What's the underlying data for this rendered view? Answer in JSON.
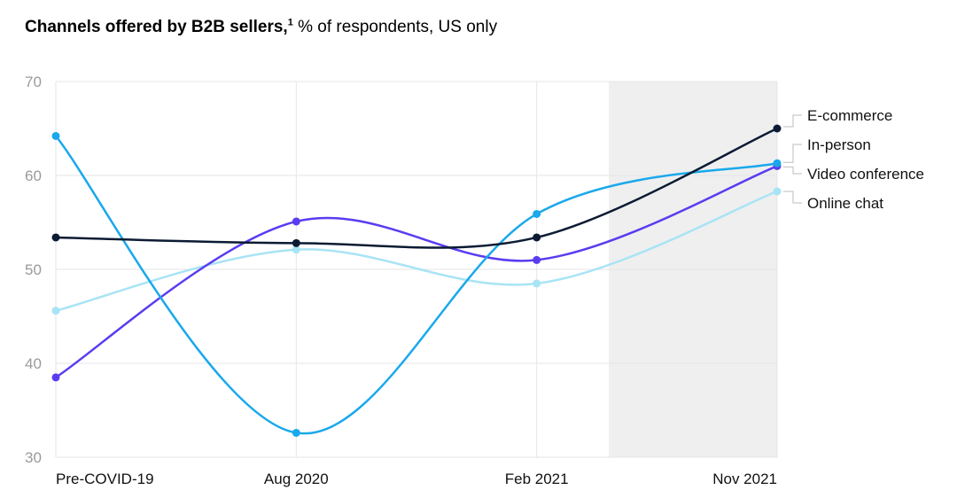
{
  "title": {
    "bold": "Channels offered by B2B sellers,",
    "footnote": "1",
    "rest": "% of respondents, US only"
  },
  "chart_data": {
    "type": "line",
    "title": "Channels offered by B2B sellers, % of respondents, US only",
    "categories": [
      "Pre-COVID-19",
      "Aug 2020",
      "Feb 2021",
      "Nov 2021"
    ],
    "x": [
      0,
      10,
      20,
      30
    ],
    "ylim": [
      30,
      70
    ],
    "yticks": [
      30,
      40,
      50,
      60,
      70
    ],
    "shaded_range": [
      23,
      30
    ],
    "series": [
      {
        "name": "E-commerce",
        "color": "#0b1b33",
        "values": [
          53.4,
          52.8,
          53.4,
          65
        ]
      },
      {
        "name": "In-person",
        "color": "#1aa8ec",
        "values": [
          64.2,
          32.6,
          55.9,
          61.3
        ]
      },
      {
        "name": "Video conference",
        "color": "#5a3cf0",
        "values": [
          38.5,
          55.1,
          51,
          61
        ]
      },
      {
        "name": "Online chat",
        "color": "#a8e4f5",
        "values": [
          45.6,
          52.1,
          48.5,
          58.3
        ]
      }
    ],
    "legend": [
      "E-commerce",
      "In-person",
      "Video conference",
      "Online chat"
    ],
    "legend_position": "right"
  }
}
